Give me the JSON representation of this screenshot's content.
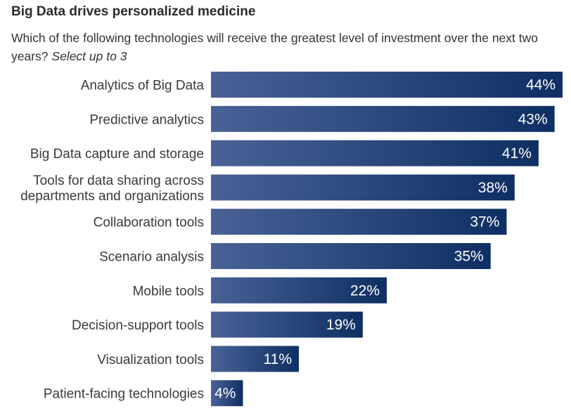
{
  "header": {
    "title": "Big Data drives personalized medicine",
    "question": "Which of the following technologies will receive the greatest level of investment over the next two years?",
    "question_note": "Select up to 3"
  },
  "colors": {
    "bar_start": "#4a6296",
    "bar_end": "#0e2f63",
    "value_text": "#ffffff"
  },
  "chart_data": {
    "type": "bar",
    "orientation": "horizontal",
    "categories": [
      [
        "Analytics of Big Data"
      ],
      [
        "Predictive analytics"
      ],
      [
        "Big Data capture and storage"
      ],
      [
        "Tools for data sharing across",
        "departments and organizations"
      ],
      [
        "Collaboration tools"
      ],
      [
        "Scenario analysis"
      ],
      [
        "Mobile tools"
      ],
      [
        "Decision-support tools"
      ],
      [
        "Visualization tools"
      ],
      [
        "Patient-facing technologies"
      ]
    ],
    "values": [
      44,
      43,
      41,
      38,
      37,
      35,
      22,
      19,
      11,
      4
    ],
    "value_labels": [
      "44%",
      "43%",
      "41%",
      "38%",
      "37%",
      "35%",
      "22%",
      "19%",
      "11%",
      "4%"
    ],
    "unit": "%",
    "xlim": [
      0,
      44
    ],
    "grid": false,
    "legend": "none"
  }
}
